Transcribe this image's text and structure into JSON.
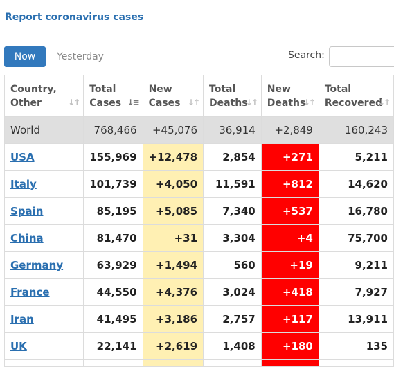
{
  "header": {
    "report_link": "Report coronavirus cases"
  },
  "tabs": {
    "now": "Now",
    "yesterday": "Yesterday"
  },
  "search": {
    "label": "Search:",
    "value": ""
  },
  "table": {
    "columns": [
      "Country,\nOther",
      "Total\nCases",
      "New\nCases",
      "Total\nDeaths",
      "New\nDeaths",
      "Total\nRecovered"
    ],
    "world": {
      "country": "World",
      "total_cases": "768,466",
      "new_cases": "+45,076",
      "total_deaths": "36,914",
      "new_deaths": "+2,849",
      "total_recovered": "160,243"
    },
    "rows": [
      {
        "country": "USA",
        "total_cases": "155,969",
        "new_cases": "+12,478",
        "total_deaths": "2,854",
        "new_deaths": "+271",
        "total_recovered": "5,211"
      },
      {
        "country": "Italy",
        "total_cases": "101,739",
        "new_cases": "+4,050",
        "total_deaths": "11,591",
        "new_deaths": "+812",
        "total_recovered": "14,620"
      },
      {
        "country": "Spain",
        "total_cases": "85,195",
        "new_cases": "+5,085",
        "total_deaths": "7,340",
        "new_deaths": "+537",
        "total_recovered": "16,780"
      },
      {
        "country": "China",
        "total_cases": "81,470",
        "new_cases": "+31",
        "total_deaths": "3,304",
        "new_deaths": "+4",
        "total_recovered": "75,700"
      },
      {
        "country": "Germany",
        "total_cases": "63,929",
        "new_cases": "+1,494",
        "total_deaths": "560",
        "new_deaths": "+19",
        "total_recovered": "9,211"
      },
      {
        "country": "France",
        "total_cases": "44,550",
        "new_cases": "+4,376",
        "total_deaths": "3,024",
        "new_deaths": "+418",
        "total_recovered": "7,927"
      },
      {
        "country": "Iran",
        "total_cases": "41,495",
        "new_cases": "+3,186",
        "total_deaths": "2,757",
        "new_deaths": "+117",
        "total_recovered": "13,911"
      },
      {
        "country": "UK",
        "total_cases": "22,141",
        "new_cases": "+2,619",
        "total_deaths": "1,408",
        "new_deaths": "+180",
        "total_recovered": "135"
      }
    ]
  },
  "colors": {
    "link": "#2a6fb0",
    "tab_active": "#3279bd",
    "new_cases_bg": "#fff0b3",
    "new_deaths_bg": "#ff0000",
    "world_row_bg": "#dfdfdf"
  },
  "icons": {
    "sort": "sort-arrows-icon"
  }
}
